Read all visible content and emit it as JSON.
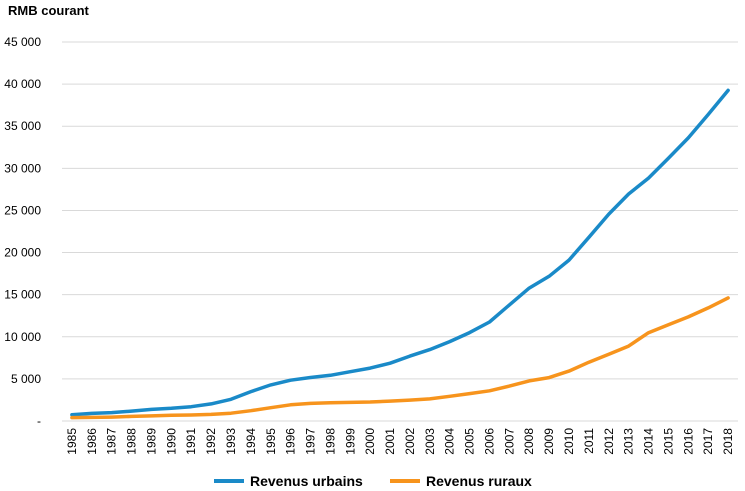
{
  "chart_data": {
    "type": "line",
    "ylabel": "RMB courant",
    "y_ticks": [
      "-",
      "5 000",
      "10 000",
      "15 000",
      "20 000",
      "25 000",
      "30 000",
      "35 000",
      "40 000",
      "45 000"
    ],
    "ylim": [
      0,
      45000
    ],
    "grid": true,
    "legend_position": "bottom",
    "x": [
      "1985",
      "1986",
      "1987",
      "1988",
      "1989",
      "1990",
      "1991",
      "1992",
      "1993",
      "1994",
      "1995",
      "1996",
      "1997",
      "1998",
      "1999",
      "2000",
      "2001",
      "2002",
      "2003",
      "2004",
      "2005",
      "2006",
      "2007",
      "2008",
      "2009",
      "2010",
      "2011",
      "2012",
      "2013",
      "2014",
      "2015",
      "2016",
      "2017",
      "2018"
    ],
    "series": [
      {
        "name": "Revenus urbains",
        "color": "#1a8ac8",
        "values": [
          739,
          900,
          1002,
          1181,
          1376,
          1510,
          1701,
          2027,
          2577,
          3496,
          4283,
          4839,
          5160,
          5425,
          5854,
          6280,
          6860,
          7703,
          8472,
          9422,
          10493,
          11759,
          13786,
          15781,
          17175,
          19109,
          21810,
          24565,
          26955,
          28844,
          31195,
          33616,
          36396,
          39251
        ]
      },
      {
        "name": "Revenus ruraux",
        "color": "#f7941d",
        "values": [
          398,
          424,
          463,
          545,
          602,
          686,
          709,
          784,
          922,
          1221,
          1578,
          1926,
          2090,
          2162,
          2210,
          2253,
          2366,
          2476,
          2622,
          2936,
          3255,
          3587,
          4140,
          4761,
          5153,
          5919,
          6977,
          7917,
          8896,
          10489,
          11422,
          12363,
          13432,
          14617
        ]
      }
    ]
  }
}
